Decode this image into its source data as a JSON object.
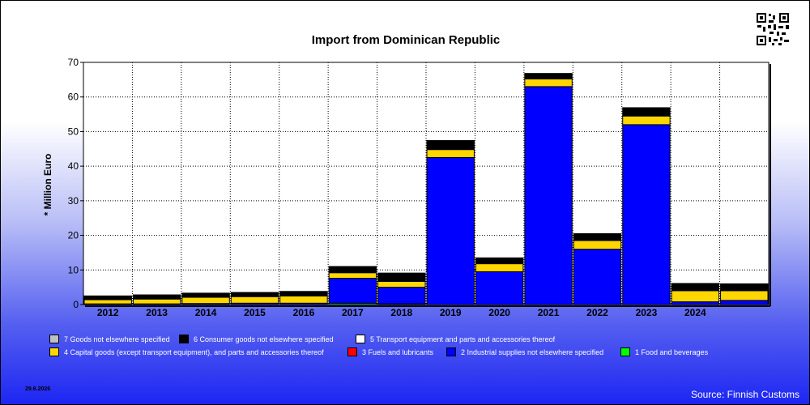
{
  "chart_data": {
    "type": "bar",
    "stacked": true,
    "title": "Import from Dominican Republic",
    "ylabel": "* Million Euro",
    "xlabel": "",
    "ylim": [
      0,
      70
    ],
    "yticks": [
      0,
      10,
      20,
      30,
      40,
      50,
      60,
      70
    ],
    "grid": true,
    "legend_position": "bottom",
    "categories": [
      "2012",
      "2013",
      "2014",
      "2015",
      "2016",
      "2017",
      "2018",
      "2019",
      "2020",
      "2021",
      "2022",
      "2023",
      "2024",
      ""
    ],
    "series": [
      {
        "name": "1 Food and beverages",
        "color": "#00ff00",
        "values": [
          0,
          0,
          0,
          0,
          0,
          0.4,
          0.2,
          0,
          0,
          0,
          0,
          0,
          0,
          0
        ]
      },
      {
        "name": "2 Industrial supplies not elsewhere specified",
        "color": "#0000ff",
        "values": [
          0.2,
          0.2,
          0.3,
          0.4,
          0.4,
          7.2,
          4.8,
          42.5,
          9.5,
          63,
          16,
          52,
          0.8,
          1.2
        ]
      },
      {
        "name": "3 Fuels and lubricants",
        "color": "#ff0000",
        "values": [
          0,
          0,
          0,
          0,
          0,
          0,
          0,
          0,
          0,
          0,
          0,
          0,
          0,
          0
        ]
      },
      {
        "name": "4 Capital goods (except transport equipment), and parts and accessories thereof",
        "color": "#ffd700",
        "values": [
          1.2,
          1.4,
          1.8,
          1.9,
          2.1,
          1.6,
          1.7,
          2.3,
          2.3,
          2.2,
          2.5,
          2.5,
          3.2,
          2.8
        ]
      },
      {
        "name": "5  Transport equipment and parts and accessories thereof",
        "color": "#ffffff",
        "values": [
          0,
          0,
          0,
          0,
          0,
          0,
          0,
          0,
          0,
          0,
          0,
          0,
          0,
          0
        ]
      },
      {
        "name": "6 Consumer goods not elsewhere specified",
        "color": "#000000",
        "values": [
          1.1,
          1.2,
          1.2,
          1.2,
          1.3,
          1.8,
          2.4,
          2.6,
          1.7,
          1.6,
          2.0,
          2.4,
          2.1,
          2.0
        ]
      },
      {
        "name": "7 Goods not elsewhere specified",
        "color": "#c0c0c0",
        "values": [
          0,
          0,
          0,
          0,
          0,
          0,
          0,
          0,
          0,
          0,
          0,
          0,
          0,
          0
        ]
      }
    ]
  },
  "legend_rows": [
    [
      "7 Goods not elsewhere specified",
      "6 Consumer goods not elsewhere specified",
      "5  Transport equipment and parts and accessories thereof"
    ],
    [
      "4 Capital goods (except transport equipment), and parts and accessories thereof",
      "3 Fuels and lubricants",
      "2 Industrial supplies not elsewhere specified",
      "1 Food and beverages"
    ]
  ],
  "footer": {
    "date": "29.6.2026",
    "source": "Source: Finnish Customs"
  },
  "qr_icon": "qr-code-icon"
}
